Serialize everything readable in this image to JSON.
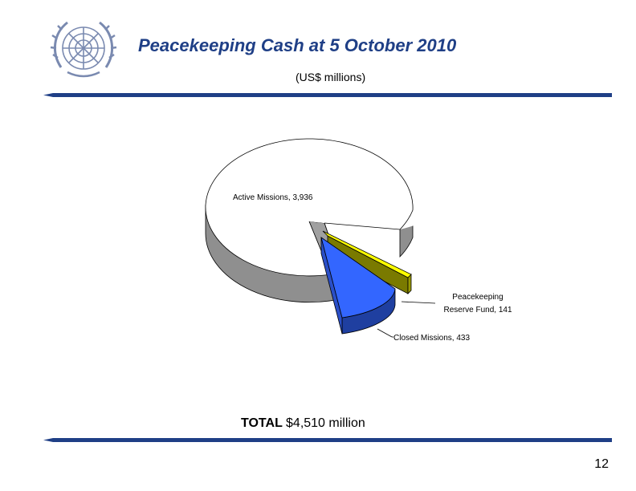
{
  "slide": {
    "title": "Peacekeeping Cash at 5 October 2010",
    "subtitle": "(US$ millions)",
    "total_label": "TOTAL",
    "total_value": "$4,510 million",
    "page_number": "12"
  },
  "colors": {
    "title": "#1f3f86",
    "active": "#ffffff",
    "reserve": "#ffff00",
    "closed": "#3366ff",
    "rule": "#1f3f86"
  },
  "chart_data": {
    "type": "pie",
    "style": "3d-exploded",
    "title": "",
    "slices": [
      {
        "label": "Active Missions",
        "value": 3936,
        "text": "Active Missions, 3,936",
        "color": "#ffffff"
      },
      {
        "label": "Peacekeeping Reserve Fund",
        "value": 141,
        "text_lines": [
          "Peacekeeping",
          "Reserve Fund, 141"
        ],
        "color": "#ffff00"
      },
      {
        "label": "Closed Missions",
        "value": 433,
        "text": "Closed Missions, 433",
        "color": "#3366ff"
      }
    ]
  }
}
